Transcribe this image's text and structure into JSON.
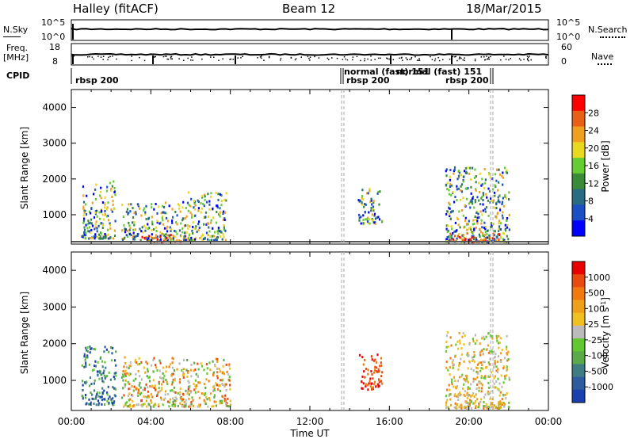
{
  "header": {
    "station": "Halley (fitACF)",
    "beam": "Beam 12",
    "date": "18/Mar/2015"
  },
  "top_strip": {
    "left_label": "N.Sky",
    "right_label": "N.Search",
    "left_ticks": [
      "10^5",
      "10^0"
    ],
    "right_ticks": [
      "10^5",
      "10^0"
    ]
  },
  "freq_strip": {
    "left_label_line1": "Freq.",
    "left_label_line2": "[MHz]",
    "left_ticks": [
      "18",
      "8"
    ],
    "right_label": "Nave",
    "right_ticks": [
      "60",
      "0"
    ]
  },
  "cpid_strip": {
    "label": "CPID",
    "entries": [
      {
        "text": "rbsp 200",
        "hour": 0.0
      },
      {
        "text": "normal (fast) 151",
        "hour": 13.55
      },
      {
        "text": "rbsp 200",
        "hour": 13.55
      },
      {
        "text": "normal (fast) 151",
        "hour": 16.5
      },
      {
        "text": "rbsp 200",
        "hour": 18.7
      }
    ],
    "boundaries_hours": [
      13.5,
      13.7,
      21.0,
      21.2
    ]
  },
  "x_axis": {
    "label": "Time UT",
    "ticks": [
      "00:00",
      "04:00",
      "08:00",
      "12:00",
      "16:00",
      "20:00",
      "00:00"
    ]
  },
  "colors": {
    "power_scale": [
      "#0000ff",
      "#1c4fc4",
      "#2a6a82",
      "#3a8a3a",
      "#66cc33",
      "#e8d820",
      "#f0a020",
      "#e86018",
      "#ff0000"
    ],
    "velocity_scale": [
      "#1a3fae",
      "#2e5c9e",
      "#3e7e82",
      "#5aaa4a",
      "#62c832",
      "#bbbbbb",
      "#f0c020",
      "#f0a018",
      "#f07a10",
      "#e84a10",
      "#e80000"
    ]
  },
  "chart_data": [
    {
      "type": "heatmap",
      "title": "Power",
      "ylabel": "Slant Range [km]",
      "xlabel": "",
      "xlim": [
        0,
        24
      ],
      "ylim": [
        180,
        4500
      ],
      "y_ticks": [
        "1000",
        "2000",
        "3000",
        "4000"
      ],
      "y_tick_values": [
        1000,
        2000,
        3000,
        4000
      ],
      "colorbar": {
        "label": "Power [dB]",
        "ticks": [
          "4",
          "8",
          "12",
          "16",
          "20",
          "24",
          "28"
        ],
        "range": [
          0,
          30
        ]
      },
      "clusters": [
        {
          "t0": 0.5,
          "t1": 2.2,
          "r0": 300,
          "r1": 1900,
          "level": "mixed-high"
        },
        {
          "t0": 2.5,
          "t1": 5.5,
          "r0": 250,
          "r1": 1300,
          "level": "mixed"
        },
        {
          "t0": 3.5,
          "t1": 5.8,
          "r0": 200,
          "r1": 400,
          "level": "strong"
        },
        {
          "t0": 5.5,
          "t1": 7.8,
          "r0": 250,
          "r1": 1600,
          "level": "mixed"
        },
        {
          "t0": 14.4,
          "t1": 15.6,
          "r0": 700,
          "r1": 1700,
          "level": "mixed"
        },
        {
          "t0": 18.8,
          "t1": 22.0,
          "r0": 200,
          "r1": 2300,
          "level": "mixed"
        },
        {
          "t0": 19.0,
          "t1": 21.5,
          "r0": 200,
          "r1": 450,
          "level": "strong"
        }
      ]
    },
    {
      "type": "heatmap",
      "title": "Velocity",
      "ylabel": "Slant Range [km]",
      "xlabel": "Time UT",
      "xlim": [
        0,
        24
      ],
      "ylim": [
        180,
        4500
      ],
      "y_ticks": [
        "1000",
        "2000",
        "3000",
        "4000"
      ],
      "y_tick_values": [
        1000,
        2000,
        3000,
        4000
      ],
      "colorbar": {
        "label": "Velocity [m s^-1]",
        "ticks": [
          "1000",
          "500",
          "100",
          "25",
          "-25",
          "-100",
          "-500",
          "-1000"
        ]
      },
      "clusters": [
        {
          "t0": 0.5,
          "t1": 2.2,
          "r0": 300,
          "r1": 1900,
          "level": "towards"
        },
        {
          "t0": 2.5,
          "t1": 8.0,
          "r0": 250,
          "r1": 1600,
          "level": "away"
        },
        {
          "t0": 14.4,
          "t1": 15.6,
          "r0": 700,
          "r1": 1700,
          "level": "away-strong"
        },
        {
          "t0": 18.8,
          "t1": 22.0,
          "r0": 200,
          "r1": 2300,
          "level": "mixed-low"
        }
      ]
    }
  ]
}
